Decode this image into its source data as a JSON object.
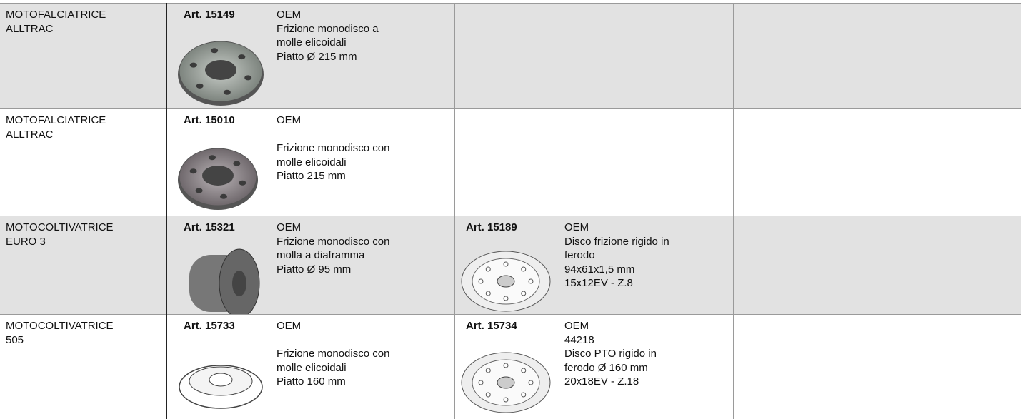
{
  "table": {
    "rows": [
      {
        "machine": [
          "MOTOFALCIATRICE",
          "ALLTRAC"
        ],
        "items": [
          {
            "art": "Art. 15149",
            "lines": [
              "OEM",
              "Frizione monodisco a",
              "molle elicoidali",
              "Piatto Ø 215 mm"
            ]
          }
        ]
      },
      {
        "machine": [
          "MOTOFALCIATRICE",
          "ALLTRAC"
        ],
        "items": [
          {
            "art": "Art. 15010",
            "lines": [
              "OEM",
              "Frizione monodisco con",
              "molle elicoidali",
              "Piatto 215 mm"
            ]
          }
        ]
      },
      {
        "machine": [
          "MOTOCOLTIVATRICE",
          "EURO 3"
        ],
        "items": [
          {
            "art": "Art. 15321",
            "lines": [
              "OEM",
              "Frizione monodisco con",
              "molla a diaframma",
              "Piatto Ø 95 mm"
            ]
          },
          {
            "art": "Art. 15189",
            "lines": [
              "OEM",
              "Disco  frizione rigido in",
              "ferodo",
              "94x61x1,5 mm",
              "15x12EV - Z.8"
            ]
          }
        ]
      },
      {
        "machine": [
          "MOTOCOLTIVATRICE",
          "505"
        ],
        "items": [
          {
            "art": "Art. 15733",
            "lines": [
              "OEM",
              "Frizione monodisco con",
              "molle elicoidali",
              "Piatto 160 mm"
            ]
          },
          {
            "art": "Art. 15734",
            "lines": [
              "OEM",
              "44218",
              "Disco PTO rigido in",
              "ferodo Ø 160 mm",
              "20x18EV - Z.18"
            ]
          }
        ]
      }
    ]
  }
}
